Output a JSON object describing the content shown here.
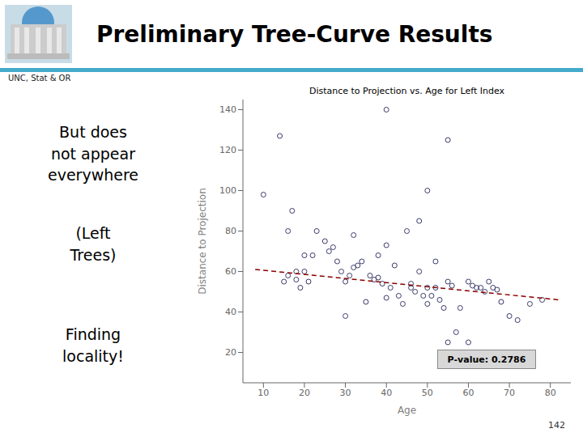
{
  "chart_data": {
    "type": "scatter",
    "title": "Preliminary Tree-Curve Results",
    "subtitle": "UNC, Stat & OR",
    "plot_title": "Distance to Projection vs. Age for Left Index",
    "xlabel": "Age",
    "ylabel": "Distance to Projection",
    "xlim": [
      5,
      85
    ],
    "ylim": [
      5,
      145
    ],
    "xticks": [
      10,
      20,
      30,
      40,
      50,
      60,
      70,
      80
    ],
    "yticks": [
      20,
      40,
      60,
      80,
      100,
      120,
      140
    ],
    "grid": false,
    "annotations": [
      "But does\nnot appear\neverywhere",
      "(Left\nTrees)",
      "Finding\nlocality!",
      "P-value: 0.2786",
      "142"
    ],
    "series": [
      {
        "type": "scatter",
        "color": "#3a3a6a",
        "marker": "circle",
        "x": [
          10,
          14,
          15,
          16,
          16,
          17,
          18,
          18,
          19,
          20,
          20,
          21,
          22,
          23,
          25,
          26,
          27,
          28,
          29,
          30,
          30,
          31,
          32,
          32,
          33,
          34,
          35,
          36,
          37,
          38,
          38,
          39,
          40,
          40,
          41,
          42,
          43,
          44,
          45,
          46,
          46,
          47,
          48,
          49,
          50,
          50,
          51,
          52,
          52,
          53,
          54,
          55,
          55,
          56,
          57,
          58,
          60,
          60,
          61,
          62,
          63,
          64,
          65,
          66,
          67,
          68,
          70,
          72,
          75,
          78,
          40,
          50,
          55,
          48
        ],
        "values": [
          98,
          127,
          55,
          58,
          80,
          90,
          56,
          60,
          52,
          60,
          68,
          55,
          68,
          80,
          75,
          70,
          72,
          65,
          60,
          55,
          38,
          58,
          62,
          78,
          63,
          65,
          45,
          58,
          56,
          57,
          68,
          54,
          47,
          73,
          52,
          63,
          48,
          44,
          80,
          54,
          52,
          50,
          60,
          48,
          52,
          44,
          48,
          52,
          65,
          46,
          42,
          25,
          55,
          53,
          30,
          42,
          25,
          55,
          53,
          52,
          52,
          50,
          55,
          52,
          51,
          45,
          38,
          36,
          44,
          46,
          140,
          100,
          125,
          85
        ]
      },
      {
        "type": "line",
        "color": "#8b0000",
        "line_style": "dashed",
        "x": [
          8,
          82
        ],
        "values": [
          61,
          46
        ]
      }
    ]
  }
}
